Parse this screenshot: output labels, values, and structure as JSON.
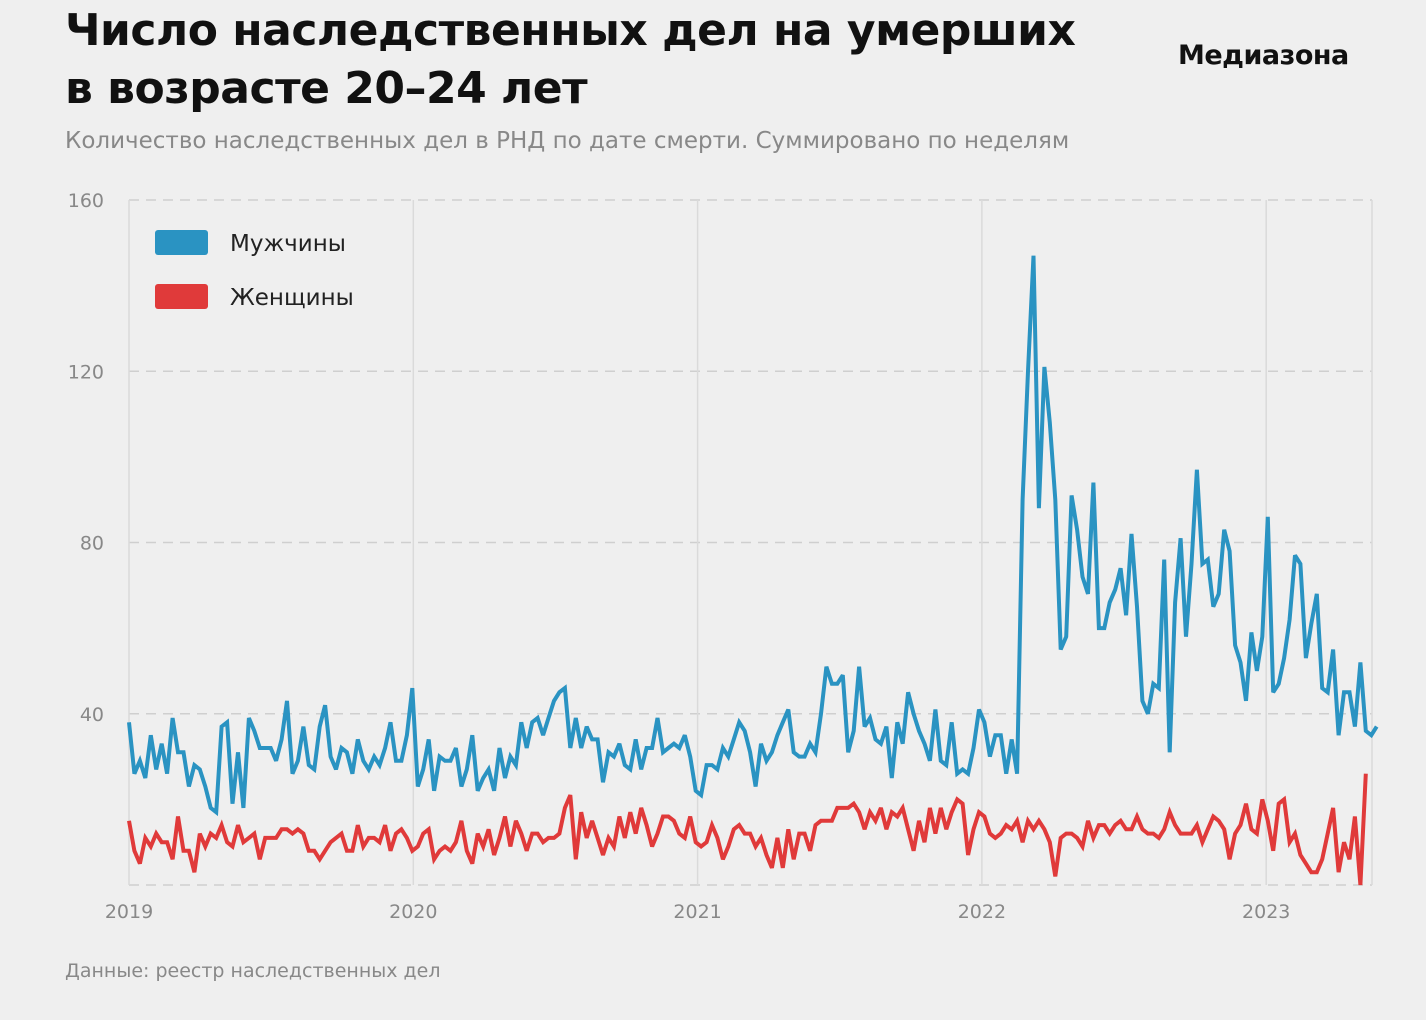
{
  "header": {
    "title_line1": "Число наследственных дел на умерших",
    "title_line2": "в возрасте 20–24 лет",
    "brand": "Медиазона",
    "subtitle": "Количество наследственных дел в РНД по дате смерти. Суммировано по неделям"
  },
  "footer": {
    "source": "Данные: реестр наследственных дел"
  },
  "chart_data": {
    "type": "line",
    "title": "Число наследственных дел на умерших в возрасте 20–24 лет",
    "xlabel": "",
    "ylabel": "",
    "x_start": 2019,
    "x_step": "week",
    "xlim": [
      2019,
      2023.4
    ],
    "ylim": [
      0,
      160
    ],
    "x_ticks": [
      "2019",
      "2020",
      "2021",
      "2022",
      "2023"
    ],
    "y_ticks": [
      "40",
      "80",
      "120",
      "160"
    ],
    "grid": true,
    "legend_position": "top-left",
    "series": [
      {
        "name": "Мужчины",
        "color": "#2a93c2",
        "values": [
          38,
          26,
          29,
          25,
          35,
          27,
          33,
          26,
          39,
          31,
          31,
          23,
          28,
          27,
          23,
          18,
          17,
          37,
          38,
          19,
          31,
          18,
          39,
          36,
          32,
          32,
          32,
          29,
          34,
          43,
          26,
          29,
          37,
          28,
          27,
          37,
          42,
          30,
          27,
          32,
          31,
          26,
          34,
          29,
          27,
          30,
          28,
          32,
          38,
          29,
          29,
          35,
          46,
          23,
          27,
          34,
          22,
          30,
          29,
          29,
          32,
          23,
          27,
          35,
          22,
          25,
          27,
          22,
          32,
          25,
          30,
          28,
          38,
          32,
          38,
          39,
          35,
          39,
          43,
          45,
          46,
          32,
          39,
          32,
          37,
          34,
          34,
          24,
          31,
          30,
          33,
          28,
          27,
          34,
          27,
          32,
          32,
          39,
          31,
          32,
          33,
          32,
          35,
          30,
          22,
          21,
          28,
          28,
          27,
          32,
          30,
          34,
          38,
          36,
          31,
          23,
          33,
          29,
          31,
          35,
          38,
          41,
          31,
          30,
          30,
          33,
          31,
          40,
          51,
          47,
          47,
          49,
          31,
          36,
          51,
          37,
          39,
          34,
          33,
          37,
          25,
          38,
          33,
          45,
          40,
          36,
          33,
          29,
          41,
          29,
          28,
          38,
          26,
          27,
          26,
          32,
          41,
          38,
          30,
          35,
          35,
          26,
          34,
          26,
          90,
          120,
          147,
          88,
          121,
          108,
          90,
          55,
          58,
          91,
          83,
          72,
          68,
          94,
          60,
          60,
          66,
          69,
          74,
          63,
          82,
          65,
          43,
          40,
          47,
          46,
          76,
          31,
          66,
          81,
          58,
          75,
          97,
          75,
          76,
          65,
          68,
          83,
          78,
          56,
          52,
          43,
          59,
          50,
          58,
          86,
          45,
          47,
          53,
          62,
          77,
          75,
          53,
          61,
          68,
          46,
          45,
          55,
          35,
          45,
          45,
          37,
          52,
          36,
          35,
          37
        ]
      },
      {
        "name": "Женщины",
        "color": "#e03a3a",
        "values": [
          15,
          8,
          5,
          11,
          9,
          12,
          10,
          10,
          6,
          16,
          8,
          8,
          3,
          12,
          9,
          12,
          11,
          14,
          10,
          9,
          14,
          10,
          11,
          12,
          6,
          11,
          11,
          11,
          13,
          13,
          12,
          13,
          12,
          8,
          8,
          6,
          8,
          10,
          11,
          12,
          8,
          8,
          14,
          9,
          11,
          11,
          10,
          14,
          8,
          12,
          13,
          11,
          8,
          9,
          12,
          13,
          6,
          8,
          9,
          8,
          10,
          15,
          8,
          5,
          12,
          9,
          13,
          7,
          11,
          16,
          9,
          15,
          12,
          8,
          12,
          12,
          10,
          11,
          11,
          12,
          18,
          21,
          6,
          17,
          11,
          15,
          11,
          7,
          11,
          9,
          16,
          11,
          17,
          12,
          18,
          14,
          9,
          12,
          16,
          16,
          15,
          12,
          11,
          16,
          10,
          9,
          10,
          14,
          11,
          6,
          9,
          13,
          14,
          12,
          12,
          9,
          11,
          7,
          4,
          11,
          4,
          13,
          6,
          12,
          12,
          8,
          14,
          15,
          15,
          15,
          18,
          18,
          18,
          19,
          17,
          13,
          17,
          15,
          18,
          13,
          17,
          16,
          18,
          13,
          8,
          15,
          10,
          18,
          12,
          18,
          13,
          17,
          20,
          19,
          7,
          13,
          17,
          16,
          12,
          11,
          12,
          14,
          13,
          15,
          10,
          15,
          13,
          15,
          13,
          10,
          2,
          11,
          12,
          12,
          11,
          9,
          15,
          11,
          14,
          14,
          12,
          14,
          15,
          13,
          13,
          16,
          13,
          12,
          12,
          11,
          13,
          17,
          14,
          12,
          12,
          12,
          14,
          10,
          13,
          16,
          15,
          13,
          6,
          12,
          14,
          19,
          13,
          12,
          20,
          15,
          8,
          19,
          20,
          10,
          12,
          7,
          5,
          3,
          3,
          6,
          12,
          18,
          3,
          10,
          6,
          16,
          0,
          26
        ]
      }
    ]
  }
}
